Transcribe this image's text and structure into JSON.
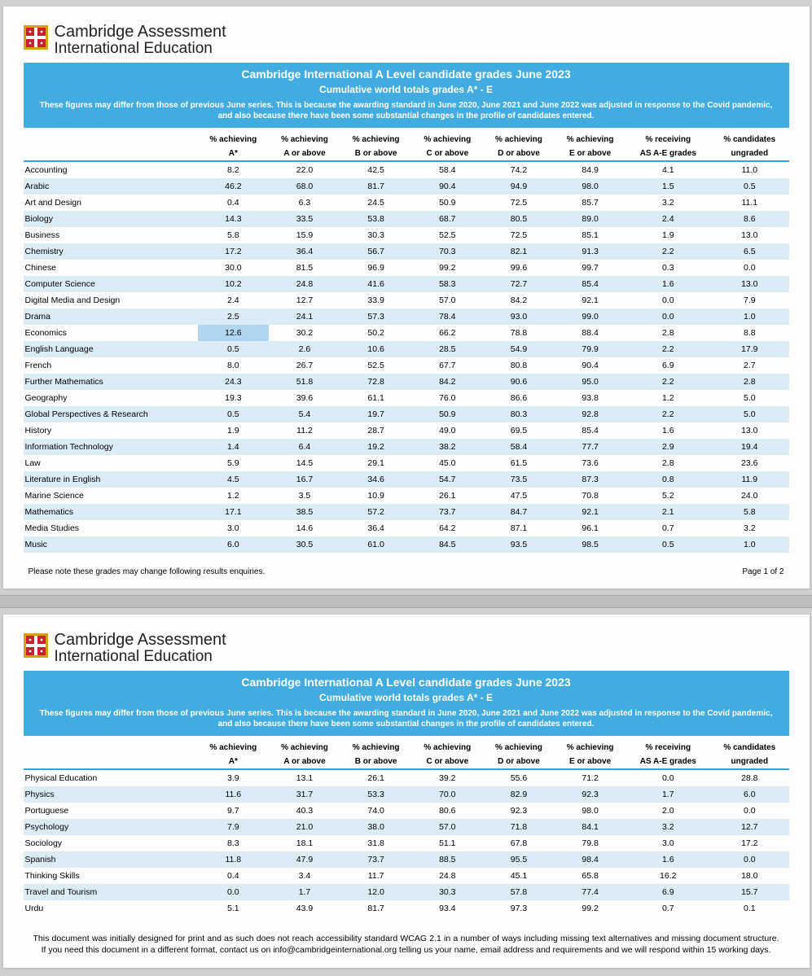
{
  "brand": {
    "line1a": "Cambridge Assessment",
    "line2": "International Education"
  },
  "banner": {
    "title": "Cambridge International A Level candidate grades June 2023",
    "subtitle": "Cumulative world totals grades A* - E",
    "note": "These figures may differ from those of previous June series. This is because the awarding standard in June 2020, June 2021 and June 2022 was adjusted in response to the Covid pandemic, and also because there have been some substantial changes in the profile of candidates entered."
  },
  "columns": [
    "",
    "% achieving",
    "% achieving",
    "% achieving",
    "% achieving",
    "% achieving",
    "% achieving",
    "% receiving",
    "% candidates"
  ],
  "columns2": [
    "",
    "A*",
    "A or above",
    "B or above",
    "C or above",
    "D or above",
    "E or above",
    "AS A-E grades",
    "ungraded"
  ],
  "page1_rows": [
    [
      "Accounting",
      "8.2",
      "22.0",
      "42.5",
      "58.4",
      "74.2",
      "84.9",
      "4.1",
      "11.0"
    ],
    [
      "Arabic",
      "46.2",
      "68.0",
      "81.7",
      "90.4",
      "94.9",
      "98.0",
      "1.5",
      "0.5"
    ],
    [
      "Art and Design",
      "0.4",
      "6.3",
      "24.5",
      "50.9",
      "72.5",
      "85.7",
      "3.2",
      "11.1"
    ],
    [
      "Biology",
      "14.3",
      "33.5",
      "53.8",
      "68.7",
      "80.5",
      "89.0",
      "2.4",
      "8.6"
    ],
    [
      "Business",
      "5.8",
      "15.9",
      "30.3",
      "52.5",
      "72.5",
      "85.1",
      "1.9",
      "13.0"
    ],
    [
      "Chemistry",
      "17.2",
      "36.4",
      "56.7",
      "70.3",
      "82.1",
      "91.3",
      "2.2",
      "6.5"
    ],
    [
      "Chinese",
      "30.0",
      "81.5",
      "96.9",
      "99.2",
      "99.6",
      "99.7",
      "0.3",
      "0.0"
    ],
    [
      "Computer Science",
      "10.2",
      "24.8",
      "41.6",
      "58.3",
      "72.7",
      "85.4",
      "1.6",
      "13.0"
    ],
    [
      "Digital Media and Design",
      "2.4",
      "12.7",
      "33.9",
      "57.0",
      "84.2",
      "92.1",
      "0.0",
      "7.9"
    ],
    [
      "Drama",
      "2.5",
      "24.1",
      "57.3",
      "78.4",
      "93.0",
      "99.0",
      "0.0",
      "1.0"
    ],
    [
      "Economics",
      "12.6",
      "30.2",
      "50.2",
      "66.2",
      "78.8",
      "88.4",
      "2.8",
      "8.8"
    ],
    [
      "English Language",
      "0.5",
      "2.6",
      "10.6",
      "28.5",
      "54.9",
      "79.9",
      "2.2",
      "17.9"
    ],
    [
      "French",
      "8.0",
      "26.7",
      "52.5",
      "67.7",
      "80.8",
      "90.4",
      "6.9",
      "2.7"
    ],
    [
      "Further Mathematics",
      "24.3",
      "51.8",
      "72.8",
      "84.2",
      "90.6",
      "95.0",
      "2.2",
      "2.8"
    ],
    [
      "Geography",
      "19.3",
      "39.6",
      "61.1",
      "76.0",
      "86.6",
      "93.8",
      "1.2",
      "5.0"
    ],
    [
      "Global Perspectives & Research",
      "0.5",
      "5.4",
      "19.7",
      "50.9",
      "80.3",
      "92.8",
      "2.2",
      "5.0"
    ],
    [
      "History",
      "1.9",
      "11.2",
      "28.7",
      "49.0",
      "69.5",
      "85.4",
      "1.6",
      "13.0"
    ],
    [
      "Information Technology",
      "1.4",
      "6.4",
      "19.2",
      "38.2",
      "58.4",
      "77.7",
      "2.9",
      "19.4"
    ],
    [
      "Law",
      "5.9",
      "14.5",
      "29.1",
      "45.0",
      "61.5",
      "73.6",
      "2.8",
      "23.6"
    ],
    [
      "Literature in English",
      "4.5",
      "16.7",
      "34.6",
      "54.7",
      "73.5",
      "87.3",
      "0.8",
      "11.9"
    ],
    [
      "Marine Science",
      "1.2",
      "3.5",
      "10.9",
      "26.1",
      "47.5",
      "70.8",
      "5.2",
      "24.0"
    ],
    [
      "Mathematics",
      "17.1",
      "38.5",
      "57.2",
      "73.7",
      "84.7",
      "92.1",
      "2.1",
      "5.8"
    ],
    [
      "Media Studies",
      "3.0",
      "14.6",
      "36.4",
      "64.2",
      "87.1",
      "96.1",
      "0.7",
      "3.2"
    ],
    [
      "Music",
      "6.0",
      "30.5",
      "61.0",
      "84.5",
      "93.5",
      "98.5",
      "0.5",
      "1.0"
    ]
  ],
  "page2_rows": [
    [
      "Physical Education",
      "3.9",
      "13.1",
      "26.1",
      "39.2",
      "55.6",
      "71.2",
      "0.0",
      "28.8"
    ],
    [
      "Physics",
      "11.6",
      "31.7",
      "53.3",
      "70.0",
      "82.9",
      "92.3",
      "1.7",
      "6.0"
    ],
    [
      "Portuguese",
      "9.7",
      "40.3",
      "74.0",
      "80.6",
      "92.3",
      "98.0",
      "2.0",
      "0.0"
    ],
    [
      "Psychology",
      "7.9",
      "21.0",
      "38.0",
      "57.0",
      "71.8",
      "84.1",
      "3.2",
      "12.7"
    ],
    [
      "Sociology",
      "8.3",
      "18.1",
      "31.8",
      "51.1",
      "67.8",
      "79.8",
      "3.0",
      "17.2"
    ],
    [
      "Spanish",
      "11.8",
      "47.9",
      "73.7",
      "88.5",
      "95.5",
      "98.4",
      "1.6",
      "0.0"
    ],
    [
      "Thinking Skills",
      "0.4",
      "3.4",
      "11.7",
      "24.8",
      "45.1",
      "65.8",
      "16.2",
      "18.0"
    ],
    [
      "Travel and Tourism",
      "0.0",
      "1.7",
      "12.0",
      "30.3",
      "57.8",
      "77.4",
      "6.9",
      "15.7"
    ],
    [
      "Urdu",
      "5.1",
      "43.9",
      "81.7",
      "93.4",
      "97.3",
      "99.2",
      "0.7",
      "0.1"
    ]
  ],
  "highlight": {
    "row": 10,
    "col": 1
  },
  "footer_note": "Please note these grades may change following results enquiries.",
  "page_label": "Page 1 of 2",
  "accessibility": "This document was initially designed for print and as such does not reach accessibility standard WCAG 2.1 in a number of ways including missing text alternatives and missing document structure. If you need this document in a different format, contact us on info@cambridgeinternational.org telling us your name, email address and requirements and we will respond within 15 working days."
}
